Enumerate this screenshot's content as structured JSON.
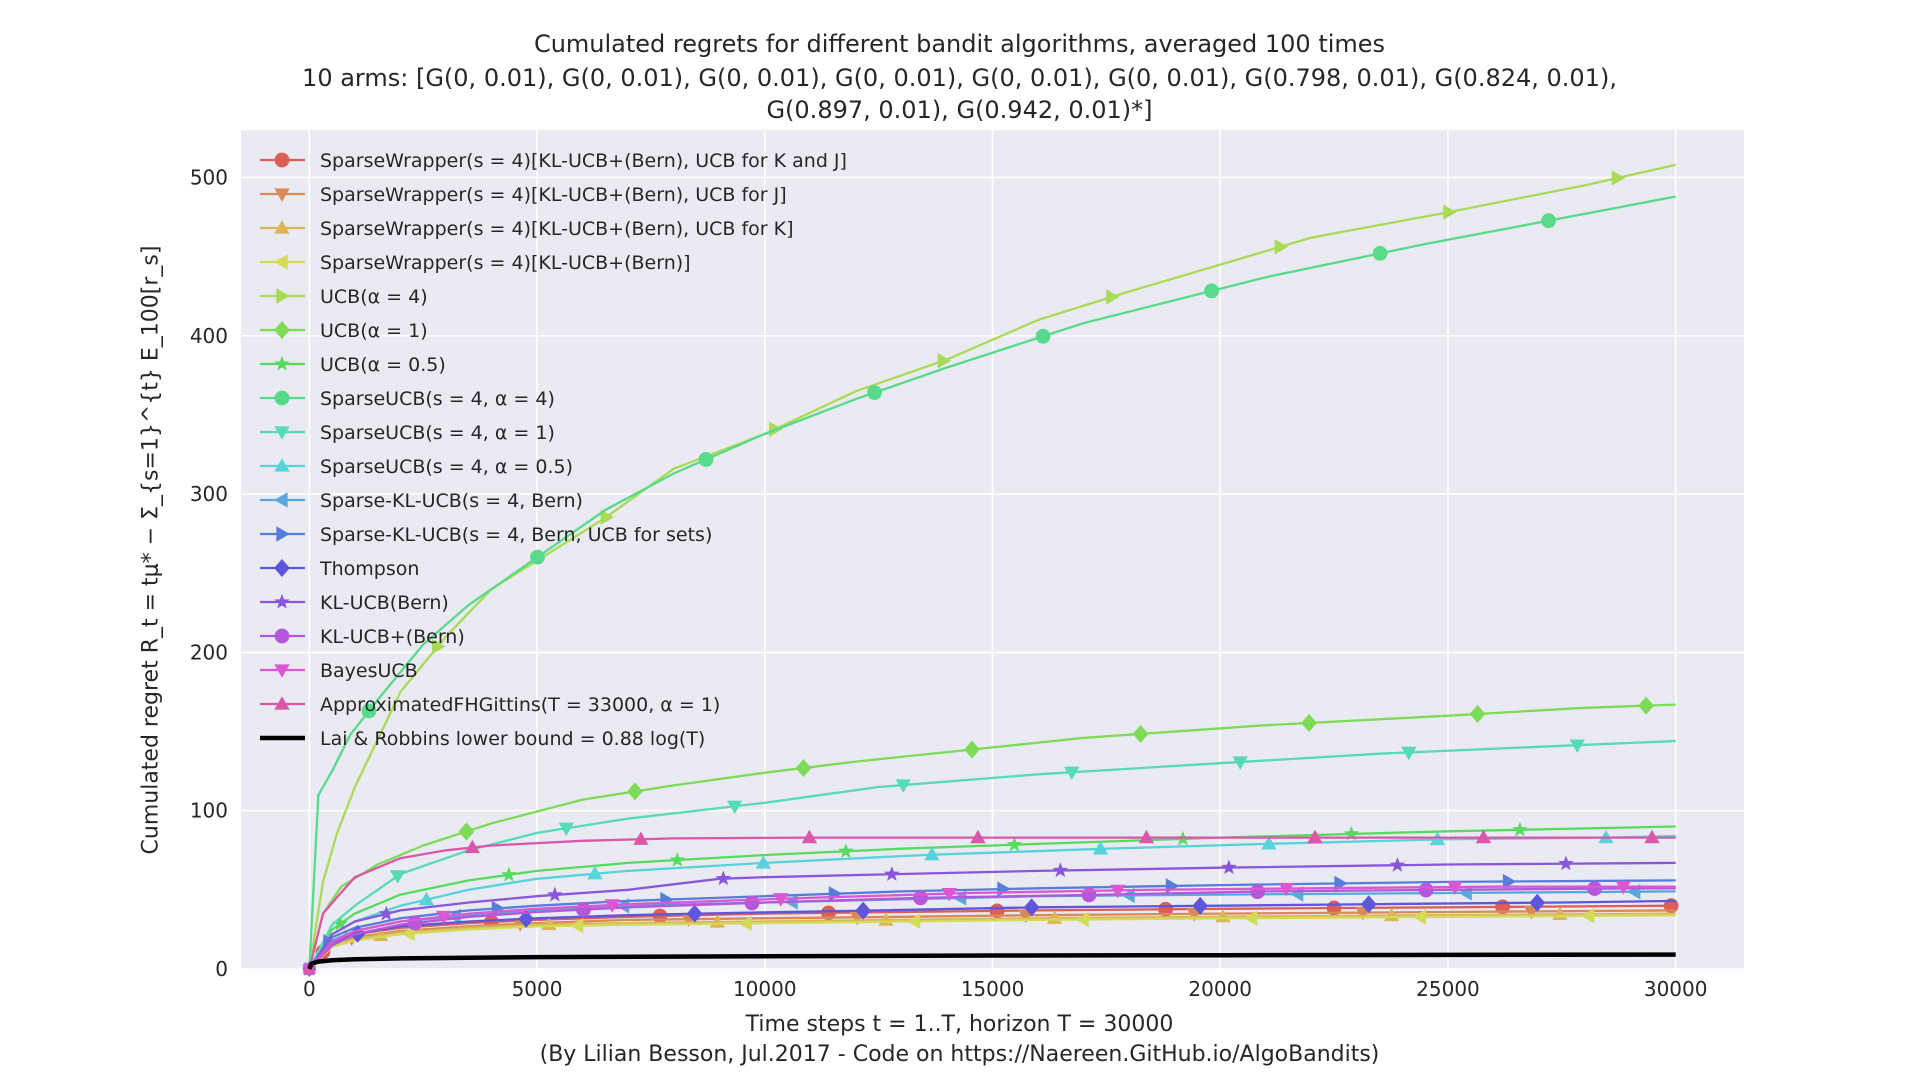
{
  "chart_data": {
    "type": "line",
    "title": "Cumulated regrets for different bandit algorithms, averaged 100 times",
    "subtitle_line1": "10 arms: [G(0, 0.01), G(0, 0.01), G(0, 0.01), G(0, 0.01), G(0, 0.01), G(0, 0.01), G(0.798, 0.01), G(0.824, 0.01),",
    "subtitle_line2": "G(0.897, 0.01), G(0.942, 0.01)*]",
    "xlabel": "Time steps t = 1..T, horizon T = 30000",
    "ylabel": "Cumulated regret R_t = tμ* − Σ_{s=1}^{t} E_100[r_s]",
    "credit": "(By Lilian Besson, Jul.2017 - Code on https://Naereen.GitHub.io/AlgoBandits)",
    "xlim": [
      -1500,
      31500
    ],
    "ylim": [
      0,
      530
    ],
    "xticks": [
      0,
      5000,
      10000,
      15000,
      20000,
      25000,
      30000
    ],
    "yticks": [
      0,
      100,
      200,
      300,
      400,
      500
    ],
    "grid": true,
    "background": "#eaeaf2",
    "legend_position": "top-left",
    "series": [
      {
        "name": "SparseWrapper(s = 4)[KL-UCB+(Bern), UCB for K and J]",
        "color": "#db5f57",
        "marker": "circle",
        "x": [
          0,
          500,
          1000,
          2000,
          3500,
          5000,
          7000,
          10000,
          13000,
          16000,
          20000,
          25000,
          30000
        ],
        "y": [
          0,
          18,
          22,
          26,
          29,
          31,
          33,
          35,
          36,
          37,
          38,
          39,
          40
        ]
      },
      {
        "name": "SparseWrapper(s = 4)[KL-UCB+(Bern), UCB for J]",
        "color": "#db8a57",
        "marker": "triangle-down",
        "x": [
          0,
          500,
          1000,
          2000,
          3500,
          5000,
          7000,
          10000,
          13000,
          16000,
          20000,
          25000,
          30000
        ],
        "y": [
          0,
          16,
          20,
          24,
          27,
          29,
          31,
          32,
          33,
          34,
          35,
          36,
          37
        ]
      },
      {
        "name": "SparseWrapper(s = 4)[KL-UCB+(Bern), UCB for K]",
        "color": "#dbb557",
        "marker": "triangle-up",
        "x": [
          0,
          500,
          1000,
          2000,
          3500,
          5000,
          7000,
          10000,
          13000,
          16000,
          20000,
          25000,
          30000
        ],
        "y": [
          0,
          15,
          19,
          23,
          26,
          28,
          29,
          30,
          31,
          32,
          33,
          34,
          35
        ]
      },
      {
        "name": "SparseWrapper(s = 4)[KL-UCB+(Bern)]",
        "color": "#d3db57",
        "marker": "triangle-left",
        "x": [
          0,
          500,
          1000,
          2000,
          3500,
          5000,
          7000,
          10000,
          13000,
          16000,
          20000,
          25000,
          30000
        ],
        "y": [
          0,
          14,
          18,
          22,
          25,
          27,
          28,
          29,
          30,
          31,
          32,
          33,
          34
        ]
      },
      {
        "name": "UCB(α = 4)",
        "color": "#a9db57",
        "marker": "triangle-right",
        "x": [
          0,
          300,
          600,
          1000,
          2000,
          3000,
          4000,
          5000,
          6500,
          8000,
          10000,
          12000,
          14000,
          16000,
          18000,
          20000,
          22000,
          25000,
          28000,
          30000
        ],
        "y": [
          0,
          55,
          85,
          115,
          175,
          210,
          240,
          258,
          285,
          316,
          338,
          365,
          385,
          410,
          428,
          445,
          462,
          478,
          495,
          508
        ]
      },
      {
        "name": "UCB(α = 1)",
        "color": "#7edb57",
        "marker": "diamond",
        "x": [
          0,
          300,
          700,
          1500,
          2500,
          4000,
          6000,
          8000,
          10000,
          12000,
          14000,
          17000,
          21000,
          25000,
          28000,
          30000
        ],
        "y": [
          0,
          35,
          52,
          66,
          78,
          92,
          107,
          116,
          124,
          131,
          137,
          146,
          154,
          160,
          165,
          167
        ]
      },
      {
        "name": "UCB(α = 0.5)",
        "color": "#57db5f",
        "marker": "star",
        "x": [
          0,
          500,
          1000,
          2000,
          3500,
          5000,
          7000,
          10000,
          13000,
          16000,
          20000,
          25000,
          30000
        ],
        "y": [
          0,
          25,
          35,
          47,
          56,
          62,
          67,
          72,
          76,
          79,
          83,
          87,
          90
        ]
      },
      {
        "name": "SparseUCB(s = 4, α = 4)",
        "color": "#57db8a",
        "marker": "circle",
        "x": [
          0,
          200,
          500,
          900,
          1500,
          2500,
          3500,
          5000,
          6500,
          8000,
          10000,
          12000,
          14000,
          17000,
          21000,
          24500,
          28000,
          30000
        ],
        "y": [
          0,
          110,
          125,
          148,
          170,
          205,
          230,
          260,
          290,
          313,
          338,
          360,
          380,
          408,
          437,
          458,
          477,
          488
        ]
      },
      {
        "name": "SparseUCB(s = 4, α = 1)",
        "color": "#57dbb5",
        "marker": "triangle-down",
        "x": [
          0,
          500,
          1000,
          2000,
          3500,
          5000,
          7000,
          10000,
          12500,
          16000,
          20000,
          23500,
          27500,
          30000
        ],
        "y": [
          0,
          28,
          40,
          60,
          75,
          86,
          95,
          105,
          115,
          123,
          130,
          136,
          141,
          144
        ]
      },
      {
        "name": "SparseUCB(s = 4, α = 0.5)",
        "color": "#57d3db",
        "marker": "triangle-up",
        "x": [
          0,
          500,
          1000,
          2000,
          3500,
          5000,
          7000,
          10000,
          13500,
          17500,
          21000,
          25000,
          28500,
          30000
        ],
        "y": [
          0,
          22,
          30,
          40,
          50,
          57,
          62,
          67,
          72,
          76,
          79,
          82,
          83,
          84
        ]
      },
      {
        "name": "Sparse-KL-UCB(s = 4, Bern)",
        "color": "#57a9db",
        "marker": "triangle-left",
        "x": [
          0,
          500,
          1000,
          2000,
          3500,
          5000,
          7000,
          10000,
          13000,
          16000,
          20000,
          25000,
          30000
        ],
        "y": [
          0,
          18,
          24,
          30,
          34,
          37,
          40,
          42,
          44,
          46,
          47,
          48,
          49
        ]
      },
      {
        "name": "Sparse-KL-UCB(s = 4, Bern, UCB for sets)",
        "color": "#577edb",
        "marker": "triangle-right",
        "x": [
          0,
          500,
          1000,
          2000,
          3500,
          5000,
          7000,
          10000,
          13000,
          16000,
          20000,
          25000,
          30000
        ],
        "y": [
          0,
          20,
          26,
          32,
          37,
          40,
          43,
          46,
          49,
          51,
          53,
          55,
          56
        ]
      },
      {
        "name": "Thompson",
        "color": "#5f57db",
        "marker": "diamond",
        "x": [
          0,
          500,
          1000,
          2000,
          3500,
          5000,
          7000,
          8500,
          12500,
          16000,
          20000,
          23500,
          27500,
          30000
        ],
        "y": [
          0,
          17,
          22,
          27,
          30,
          32,
          34,
          35,
          37,
          39,
          40,
          41,
          42,
          43
        ]
      },
      {
        "name": "KL-UCB(Bern)",
        "color": "#8a57db",
        "marker": "star",
        "x": [
          0,
          500,
          1000,
          2000,
          3500,
          5000,
          7000,
          9000,
          10000,
          13000,
          16000,
          20000,
          25000,
          30000
        ],
        "y": [
          0,
          22,
          30,
          37,
          42,
          46,
          50,
          57,
          58,
          60,
          62,
          64,
          66,
          67
        ]
      },
      {
        "name": "KL-UCB+(Bern)",
        "color": "#b557db",
        "marker": "circle",
        "x": [
          0,
          500,
          1000,
          2000,
          3500,
          5000,
          7000,
          10000,
          13500,
          17500,
          21000,
          25000,
          29000,
          30000
        ],
        "y": [
          0,
          15,
          22,
          28,
          33,
          36,
          39,
          42,
          45,
          47,
          49,
          50,
          51,
          51
        ]
      },
      {
        "name": "BayesUCB",
        "color": "#db57d3",
        "marker": "triangle-down",
        "x": [
          0,
          500,
          1000,
          2000,
          3500,
          5000,
          7000,
          11000,
          14500,
          18500,
          22000,
          26000,
          30000
        ],
        "y": [
          0,
          17,
          24,
          30,
          35,
          38,
          41,
          45,
          48,
          50,
          51,
          52,
          52
        ]
      },
      {
        "name": "ApproximatedFHGittins(T = 33000, α = 1)",
        "color": "#db57a9",
        "marker": "triangle-up",
        "x": [
          0,
          300,
          600,
          1000,
          1500,
          2000,
          3000,
          4000,
          6000,
          8000,
          11000,
          14500,
          18000,
          22000,
          26000,
          30000
        ],
        "y": [
          0,
          35,
          45,
          58,
          64,
          70,
          75,
          78,
          81,
          82.5,
          83,
          83,
          83,
          83,
          83,
          83
        ]
      },
      {
        "name": "Lai & Robbins lower bound = 0.88 log(T)",
        "color": "#000000",
        "marker": "none",
        "lineWidth": 4.5,
        "x": [
          0,
          50,
          200,
          500,
          1000,
          2000,
          5000,
          10000,
          15000,
          20000,
          25000,
          30000
        ],
        "y": [
          0,
          3.4,
          4.7,
          5.5,
          6.1,
          6.7,
          7.5,
          8.1,
          8.5,
          8.7,
          8.9,
          9.1
        ]
      }
    ]
  }
}
